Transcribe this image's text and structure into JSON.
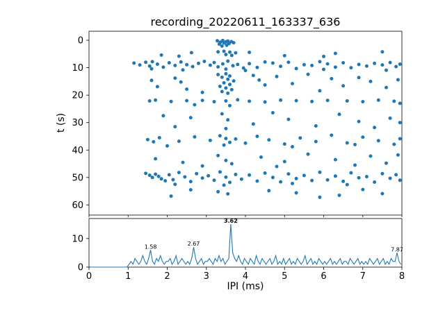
{
  "title": "recording_20220611_163337_636",
  "colors": {
    "series": "#1f77b4",
    "axis": "#000000",
    "background": "#ffffff"
  },
  "chart_data": [
    {
      "type": "scatter",
      "title": "recording_20220611_163337_636",
      "xlabel": "",
      "ylabel": "t (s)",
      "xlim": [
        0,
        8
      ],
      "ylim": [
        63.7,
        -3.3
      ],
      "y_inverted": true,
      "xticks": [
        0,
        1,
        2,
        3,
        4,
        5,
        6,
        7,
        8
      ],
      "yticks": [
        0,
        10,
        20,
        30,
        40,
        50,
        60
      ],
      "grid": false,
      "legend": "none",
      "points": [
        [
          3.28,
          0.2
        ],
        [
          3.42,
          0.1
        ],
        [
          3.55,
          0.3
        ],
        [
          3.36,
          0.7
        ],
        [
          3.5,
          0.6
        ],
        [
          3.64,
          0.5
        ],
        [
          3.45,
          1.0
        ],
        [
          3.58,
          1.2
        ],
        [
          3.33,
          1.4
        ],
        [
          3.7,
          0.9
        ],
        [
          3.52,
          1.8
        ],
        [
          3.4,
          2.1
        ],
        [
          2.62,
          4.5
        ],
        [
          3.3,
          4.2
        ],
        [
          3.45,
          4.0
        ],
        [
          3.6,
          4.3
        ],
        [
          3.75,
          4.6
        ],
        [
          4.1,
          4.4
        ],
        [
          6.3,
          4.8
        ],
        [
          7.5,
          4.2
        ],
        [
          3.5,
          5.2
        ],
        [
          3.65,
          5.5
        ],
        [
          2.3,
          5.8
        ],
        [
          5.0,
          5.6
        ],
        [
          6.0,
          5.9
        ],
        [
          1.85,
          5.4
        ],
        [
          1.15,
          8.3
        ],
        [
          1.3,
          9.0
        ],
        [
          1.45,
          8.0
        ],
        [
          1.55,
          9.4
        ],
        [
          1.62,
          7.8
        ],
        [
          1.75,
          8.7
        ],
        [
          1.9,
          9.8
        ],
        [
          2.05,
          8.2
        ],
        [
          2.2,
          9.2
        ],
        [
          2.35,
          7.9
        ],
        [
          2.5,
          8.9
        ],
        [
          2.65,
          9.6
        ],
        [
          2.8,
          8.4
        ],
        [
          2.95,
          7.7
        ],
        [
          3.1,
          9.1
        ],
        [
          3.2,
          8.1
        ],
        [
          3.3,
          9.7
        ],
        [
          3.42,
          8.6
        ],
        [
          3.55,
          7.6
        ],
        [
          3.68,
          9.3
        ],
        [
          3.8,
          8.8
        ],
        [
          3.95,
          10.1
        ],
        [
          4.1,
          8.5
        ],
        [
          4.3,
          9.9
        ],
        [
          4.5,
          7.9
        ],
        [
          4.7,
          8.3
        ],
        [
          4.9,
          9.5
        ],
        [
          5.1,
          8.0
        ],
        [
          5.3,
          10.3
        ],
        [
          5.5,
          8.9
        ],
        [
          5.7,
          9.2
        ],
        [
          5.9,
          7.8
        ],
        [
          6.1,
          8.6
        ],
        [
          6.3,
          9.8
        ],
        [
          6.5,
          8.2
        ],
        [
          6.7,
          10.0
        ],
        [
          6.9,
          8.8
        ],
        [
          7.1,
          9.4
        ],
        [
          7.3,
          8.4
        ],
        [
          7.5,
          9.0
        ],
        [
          7.7,
          8.1
        ],
        [
          7.85,
          9.6
        ],
        [
          7.95,
          8.7
        ],
        [
          2.4,
          10.8
        ],
        [
          3.5,
          10.5
        ],
        [
          4.0,
          11.0
        ],
        [
          6.0,
          10.6
        ],
        [
          7.6,
          10.9
        ],
        [
          1.6,
          10.4
        ],
        [
          3.3,
          12.5
        ],
        [
          3.5,
          12.2
        ],
        [
          3.6,
          13.0
        ],
        [
          3.4,
          13.5
        ],
        [
          3.55,
          14.2
        ],
        [
          3.7,
          14.8
        ],
        [
          3.45,
          15.5
        ],
        [
          3.6,
          16.1
        ],
        [
          3.35,
          16.8
        ],
        [
          3.5,
          17.4
        ],
        [
          3.65,
          18.0
        ],
        [
          3.4,
          18.7
        ],
        [
          3.55,
          19.3
        ],
        [
          2.2,
          13.8
        ],
        [
          2.35,
          15.2
        ],
        [
          2.5,
          17.8
        ],
        [
          4.2,
          12.8
        ],
        [
          4.35,
          14.5
        ],
        [
          4.5,
          16.3
        ],
        [
          4.8,
          13.2
        ],
        [
          5.2,
          15.8
        ],
        [
          5.6,
          12.4
        ],
        [
          6.2,
          14.0
        ],
        [
          6.5,
          16.6
        ],
        [
          6.9,
          13.6
        ],
        [
          7.2,
          15.0
        ],
        [
          7.6,
          17.2
        ],
        [
          7.9,
          14.4
        ],
        [
          1.6,
          14.6
        ],
        [
          1.75,
          16.9
        ],
        [
          2.9,
          19.0
        ],
        [
          5.9,
          18.4
        ],
        [
          1.55,
          22.1
        ],
        [
          1.7,
          21.8
        ],
        [
          2.1,
          22.3
        ],
        [
          2.5,
          22.0
        ],
        [
          2.9,
          21.9
        ],
        [
          3.2,
          22.4
        ],
        [
          3.5,
          22.1
        ],
        [
          3.8,
          21.7
        ],
        [
          4.1,
          22.2
        ],
        [
          4.5,
          22.5
        ],
        [
          4.9,
          21.8
        ],
        [
          5.3,
          22.0
        ],
        [
          5.7,
          22.3
        ],
        [
          6.1,
          21.9
        ],
        [
          6.6,
          22.1
        ],
        [
          7.0,
          22.4
        ],
        [
          7.4,
          21.8
        ],
        [
          7.8,
          22.2
        ],
        [
          7.95,
          23.0
        ],
        [
          2.7,
          23.5
        ],
        [
          3.6,
          23.8
        ],
        [
          1.9,
          27.5
        ],
        [
          2.6,
          28.2
        ],
        [
          3.4,
          26.8
        ],
        [
          3.55,
          29.0
        ],
        [
          4.2,
          30.5
        ],
        [
          5.1,
          28.8
        ],
        [
          5.8,
          31.2
        ],
        [
          6.4,
          27.0
        ],
        [
          6.9,
          29.6
        ],
        [
          7.3,
          31.8
        ],
        [
          7.7,
          28.4
        ],
        [
          7.95,
          30.0
        ],
        [
          2.2,
          31.5
        ],
        [
          3.5,
          32.2
        ],
        [
          4.7,
          26.4
        ],
        [
          1.5,
          36.2
        ],
        [
          1.65,
          37.0
        ],
        [
          1.8,
          35.5
        ],
        [
          2.3,
          36.8
        ],
        [
          2.7,
          35.2
        ],
        [
          3.1,
          36.5
        ],
        [
          3.35,
          34.8
        ],
        [
          3.5,
          35.8
        ],
        [
          3.6,
          37.2
        ],
        [
          3.75,
          36.0
        ],
        [
          4.0,
          37.5
        ],
        [
          4.3,
          35.0
        ],
        [
          4.6,
          36.3
        ],
        [
          5.0,
          37.8
        ],
        [
          5.4,
          35.6
        ],
        [
          5.8,
          36.9
        ],
        [
          6.2,
          34.6
        ],
        [
          6.6,
          37.4
        ],
        [
          7.0,
          35.3
        ],
        [
          7.4,
          36.6
        ],
        [
          7.8,
          37.9
        ],
        [
          7.95,
          35.9
        ],
        [
          2.0,
          38.5
        ],
        [
          3.45,
          38.2
        ],
        [
          5.2,
          38.8
        ],
        [
          6.8,
          38.0
        ],
        [
          1.7,
          43.2
        ],
        [
          2.4,
          44.5
        ],
        [
          3.3,
          42.0
        ],
        [
          3.5,
          43.8
        ],
        [
          3.65,
          45.0
        ],
        [
          4.4,
          42.6
        ],
        [
          5.0,
          44.2
        ],
        [
          5.6,
          41.5
        ],
        [
          6.3,
          43.5
        ],
        [
          6.8,
          45.5
        ],
        [
          7.2,
          42.2
        ],
        [
          7.6,
          44.8
        ],
        [
          7.9,
          41.8
        ],
        [
          2.9,
          45.8
        ],
        [
          4.8,
          46.0
        ],
        [
          1.45,
          48.5
        ],
        [
          1.55,
          49.2
        ],
        [
          1.62,
          50.0
        ],
        [
          1.7,
          48.8
        ],
        [
          1.78,
          49.6
        ],
        [
          1.85,
          50.5
        ],
        [
          1.95,
          51.2
        ],
        [
          2.05,
          49.0
        ],
        [
          2.15,
          50.8
        ],
        [
          2.3,
          48.2
        ],
        [
          2.45,
          49.8
        ],
        [
          2.6,
          51.5
        ],
        [
          2.75,
          48.6
        ],
        [
          2.9,
          50.2
        ],
        [
          3.05,
          49.4
        ],
        [
          3.2,
          51.0
        ],
        [
          3.35,
          48.0
        ],
        [
          3.5,
          49.9
        ],
        [
          3.6,
          51.8
        ],
        [
          3.75,
          48.9
        ],
        [
          3.9,
          50.6
        ],
        [
          4.1,
          49.1
        ],
        [
          4.3,
          51.3
        ],
        [
          4.5,
          48.4
        ],
        [
          4.7,
          50.0
        ],
        [
          4.9,
          51.6
        ],
        [
          5.1,
          48.7
        ],
        [
          5.3,
          50.4
        ],
        [
          5.5,
          49.3
        ],
        [
          5.7,
          51.1
        ],
        [
          5.9,
          48.1
        ],
        [
          6.1,
          50.9
        ],
        [
          6.3,
          49.5
        ],
        [
          6.5,
          51.4
        ],
        [
          6.7,
          48.3
        ],
        [
          6.9,
          50.1
        ],
        [
          7.1,
          49.7
        ],
        [
          7.3,
          51.7
        ],
        [
          7.5,
          48.6
        ],
        [
          7.7,
          50.3
        ],
        [
          7.85,
          49.0
        ],
        [
          7.95,
          51.0
        ],
        [
          2.2,
          52.5
        ],
        [
          3.45,
          52.8
        ],
        [
          5.2,
          52.2
        ],
        [
          6.6,
          52.6
        ],
        [
          2.6,
          54.5
        ],
        [
          3.3,
          55.2
        ],
        [
          3.55,
          56.0
        ],
        [
          4.6,
          54.8
        ],
        [
          5.3,
          55.6
        ],
        [
          6.4,
          56.5
        ],
        [
          7.0,
          54.4
        ],
        [
          7.5,
          55.9
        ],
        [
          2.1,
          56.8
        ],
        [
          5.9,
          57.2
        ]
      ]
    },
    {
      "type": "line",
      "xlabel": "IPI (ms)",
      "ylabel": "",
      "xlim": [
        0,
        8
      ],
      "ylim": [
        0,
        17
      ],
      "xticks": [
        0,
        1,
        2,
        3,
        4,
        5,
        6,
        7,
        8
      ],
      "yticks": [
        0,
        10
      ],
      "grid": false,
      "legend": "none",
      "x_start": 0.025,
      "bin_width": 0.05,
      "values": [
        0,
        0,
        0,
        0,
        0,
        0,
        0,
        0,
        0,
        0,
        0,
        0,
        0,
        0,
        0,
        0,
        0,
        0,
        0,
        0,
        1,
        2,
        1,
        3,
        2,
        1,
        2,
        4,
        2,
        1,
        3,
        6,
        2,
        1,
        3,
        2,
        4,
        2,
        1,
        2,
        2,
        3,
        1,
        2,
        4,
        1,
        2,
        3,
        2,
        1,
        2,
        1,
        3,
        7,
        3,
        1,
        2,
        3,
        1,
        2,
        2,
        3,
        2,
        1,
        3,
        2,
        4,
        2,
        3,
        1,
        2,
        3,
        15,
        5,
        3,
        2,
        4,
        2,
        1,
        3,
        2,
        1,
        3,
        2,
        1,
        4,
        2,
        1,
        3,
        2,
        1,
        2,
        3,
        1,
        2,
        4,
        1,
        2,
        1,
        3,
        1,
        2,
        3,
        1,
        2,
        1,
        3,
        2,
        1,
        2,
        4,
        1,
        2,
        3,
        1,
        2,
        1,
        3,
        2,
        1,
        2,
        1,
        2,
        3,
        1,
        2,
        1,
        2,
        3,
        1,
        2,
        2,
        1,
        3,
        2,
        1,
        2,
        3,
        1,
        2,
        1,
        2,
        1,
        3,
        2,
        1,
        2,
        3,
        1,
        2,
        3,
        1,
        2,
        1,
        3,
        2,
        2,
        5,
        2,
        1
      ],
      "annotations": [
        {
          "x": 1.575,
          "y": 6,
          "label": "1.58",
          "bold": false
        },
        {
          "x": 2.675,
          "y": 7,
          "label": "2.67",
          "bold": false
        },
        {
          "x": 3.625,
          "y": 15,
          "label": "3.62",
          "bold": true
        },
        {
          "x": 7.875,
          "y": 5,
          "label": "7.87",
          "bold": false
        }
      ]
    }
  ]
}
